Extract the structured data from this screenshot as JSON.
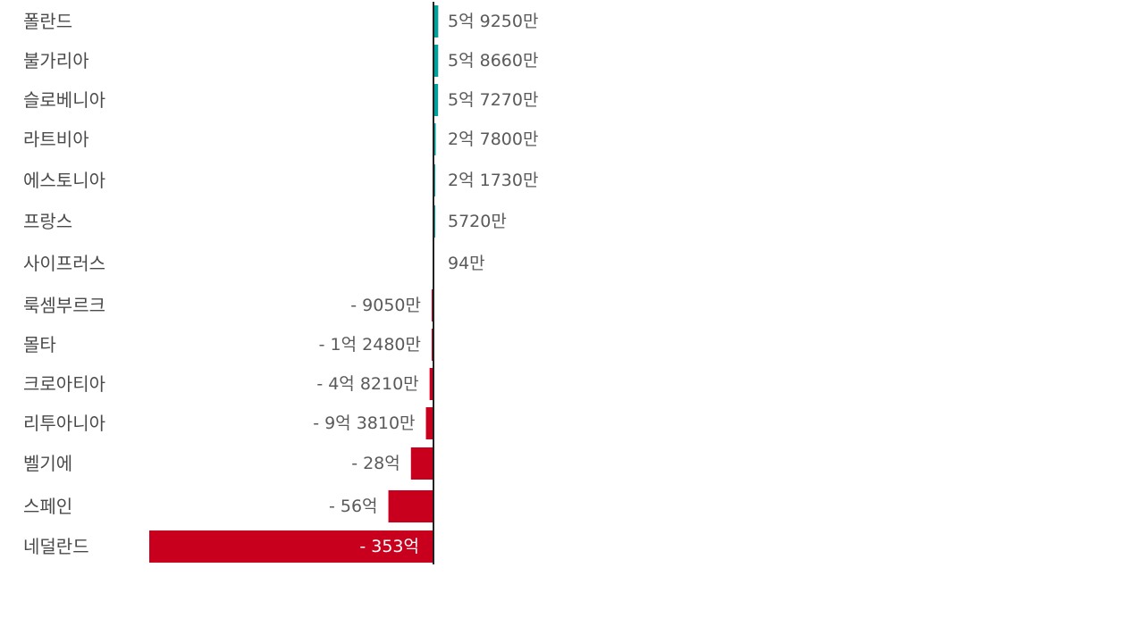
{
  "chart_data": {
    "type": "bar",
    "orientation": "horizontal",
    "title": "",
    "xlabel": "",
    "ylabel": "",
    "unit": "원",
    "colors": {
      "positive": "#00a19a",
      "negative": "#c8001e",
      "axis": "#222222",
      "label": "#4a4a4a",
      "value_label": "#5a5a5a"
    },
    "grid": false,
    "legend": "none",
    "categories": [
      "폴란드",
      "불가리아",
      "슬로베니아",
      "라트비아",
      "에스토니아",
      "프랑스",
      "사이프러스",
      "룩셈부르크",
      "몰타",
      "크로아티아",
      "리투아니아",
      "벨기에",
      "스페인",
      "네덜란드"
    ],
    "values": [
      592500000,
      586600000,
      572700000,
      278000000,
      217300000,
      57200000,
      940000,
      -90500000,
      -124800000,
      -482100000,
      -938100000,
      -2800000000,
      -5600000000,
      -35300000000
    ],
    "value_labels": [
      "5억 9250만",
      "5억 8660만",
      "5억 7270만",
      "2억 7800만",
      "2억 1730만",
      "5720만",
      "94만",
      "- 9050만",
      "- 1억 2480만",
      "- 4억 8210만",
      "- 9억 3810만",
      "- 28억",
      "- 56억",
      "- 353억"
    ]
  }
}
